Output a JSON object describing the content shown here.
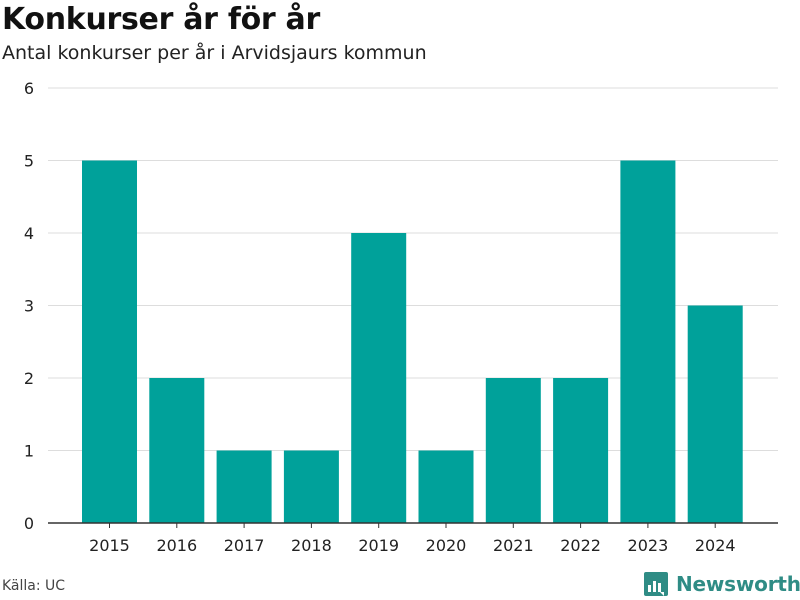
{
  "brand": {
    "name": "Newsworthy",
    "icon": "newsworthy-logo-icon",
    "color": "#2f8c85"
  },
  "source": "Källa: UC",
  "chart_data": {
    "type": "bar",
    "title": "Konkurser år för år",
    "subtitle": "Antal konkurser per år i Arvidsjaurs kommun",
    "xlabel": "",
    "ylabel": "",
    "categories": [
      "2015",
      "2016",
      "2017",
      "2018",
      "2019",
      "2020",
      "2021",
      "2022",
      "2023",
      "2024"
    ],
    "values": [
      5,
      2,
      1,
      1,
      4,
      1,
      2,
      2,
      5,
      3
    ],
    "ylim": [
      0,
      6
    ],
    "yticks": [
      0,
      1,
      2,
      3,
      4,
      5,
      6
    ],
    "grid": true,
    "legend": "none",
    "bar_color": "#00a19a",
    "grid_color": "#dddddd",
    "axis_color": "#333333"
  }
}
